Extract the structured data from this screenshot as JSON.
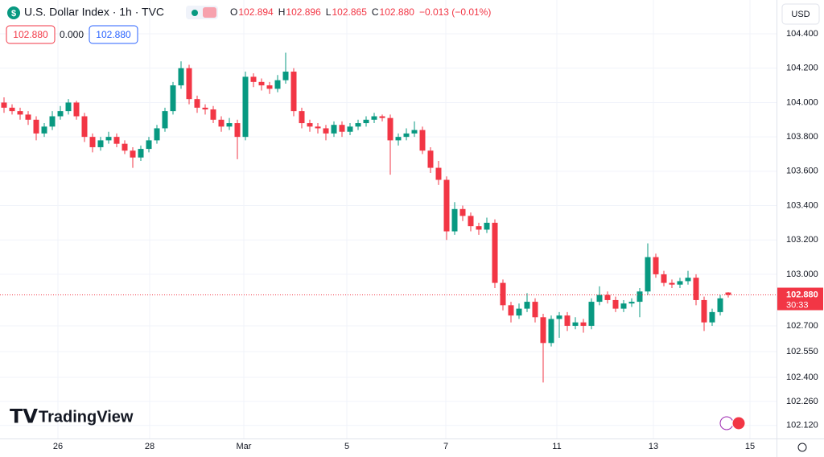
{
  "symbol": "U.S. Dollar Index · 1h · TVC",
  "ohlc": [
    {
      "key": "O",
      "value": "102.894"
    },
    {
      "key": "H",
      "value": "102.896"
    },
    {
      "key": "L",
      "value": "102.865"
    },
    {
      "key": "C",
      "value": "102.880"
    }
  ],
  "change": "−0.013 (−0.01%)",
  "price_boxes": [
    "102.880",
    "0.000",
    "102.880"
  ],
  "currency": "USD",
  "brand": "TradingView",
  "chart_data": {
    "type": "candlestick",
    "up_color": "#089981",
    "down_color": "#f23645",
    "open": [
      104.0,
      103.97,
      103.95,
      103.93,
      103.9,
      103.82,
      103.86,
      103.92,
      103.95,
      104.0,
      103.92,
      103.8,
      103.74,
      103.78,
      103.8,
      103.76,
      103.72,
      103.68,
      103.73,
      103.78,
      103.85,
      103.95,
      104.1,
      104.2,
      104.02,
      103.97,
      103.96,
      103.9,
      103.86,
      103.88,
      103.8,
      104.15,
      104.12,
      104.1,
      104.08,
      104.13,
      104.18,
      103.95,
      103.88,
      103.86,
      103.85,
      103.82,
      103.87,
      103.83,
      103.86,
      103.88,
      103.9,
      103.92,
      103.91,
      103.78,
      103.8,
      103.82,
      103.84,
      103.72,
      103.62,
      103.55,
      103.25,
      103.38,
      103.34,
      103.28,
      103.26,
      103.3,
      102.95,
      102.82,
      102.76,
      102.8,
      102.84,
      102.75,
      102.6,
      102.74,
      102.76,
      102.7,
      102.72,
      102.7,
      102.84,
      102.88,
      102.85,
      102.8,
      102.83,
      102.84,
      102.9,
      103.1,
      103.0,
      102.95,
      102.94,
      102.96,
      102.98,
      102.85,
      102.72,
      102.78,
      102.894
    ],
    "high": [
      104.03,
      103.99,
      103.97,
      103.95,
      103.92,
      103.88,
      103.95,
      103.98,
      104.02,
      104.01,
      103.94,
      103.82,
      103.8,
      103.83,
      103.82,
      103.78,
      103.74,
      103.75,
      103.8,
      103.87,
      103.97,
      104.12,
      104.24,
      104.22,
      104.04,
      103.99,
      103.98,
      103.92,
      103.91,
      103.9,
      104.18,
      104.17,
      104.14,
      104.12,
      104.16,
      104.29,
      104.2,
      103.97,
      103.9,
      103.88,
      103.87,
      103.89,
      103.89,
      103.88,
      103.9,
      103.92,
      103.94,
      103.93,
      103.93,
      103.82,
      103.85,
      103.89,
      103.86,
      103.74,
      103.66,
      103.57,
      103.42,
      103.4,
      103.36,
      103.3,
      103.33,
      103.32,
      102.97,
      102.84,
      102.83,
      102.89,
      102.86,
      102.77,
      102.76,
      102.78,
      102.78,
      102.75,
      102.74,
      102.86,
      102.93,
      102.9,
      102.87,
      102.85,
      102.86,
      102.92,
      103.18,
      103.12,
      103.02,
      102.97,
      102.98,
      103.02,
      103.0,
      102.87,
      102.8,
      102.88,
      102.896
    ],
    "low": [
      103.94,
      103.93,
      103.9,
      103.87,
      103.78,
      103.8,
      103.84,
      103.9,
      103.93,
      103.9,
      103.77,
      103.71,
      103.72,
      103.76,
      103.74,
      103.7,
      103.62,
      103.66,
      103.71,
      103.76,
      103.83,
      103.93,
      104.08,
      103.99,
      103.94,
      103.93,
      103.88,
      103.83,
      103.84,
      103.67,
      103.78,
      104.09,
      104.07,
      104.05,
      104.06,
      104.11,
      103.92,
      103.85,
      103.83,
      103.82,
      103.78,
      103.8,
      103.8,
      103.81,
      103.84,
      103.86,
      103.88,
      103.89,
      103.58,
      103.75,
      103.78,
      103.8,
      103.7,
      103.59,
      103.52,
      103.2,
      103.23,
      103.31,
      103.25,
      103.23,
      103.24,
      102.92,
      102.79,
      102.72,
      102.74,
      102.78,
      102.72,
      102.37,
      102.58,
      102.63,
      102.67,
      102.68,
      102.66,
      102.68,
      102.82,
      102.83,
      102.78,
      102.78,
      102.81,
      102.75,
      102.88,
      102.98,
      102.93,
      102.92,
      102.92,
      102.94,
      102.82,
      102.67,
      102.7,
      102.76,
      102.865
    ],
    "close": [
      103.97,
      103.95,
      103.93,
      103.9,
      103.82,
      103.86,
      103.92,
      103.95,
      104.0,
      103.92,
      103.8,
      103.74,
      103.78,
      103.8,
      103.76,
      103.72,
      103.68,
      103.73,
      103.78,
      103.85,
      103.95,
      104.1,
      104.2,
      104.02,
      103.97,
      103.96,
      103.9,
      103.86,
      103.88,
      103.8,
      104.15,
      104.12,
      104.1,
      104.08,
      104.13,
      104.18,
      103.95,
      103.88,
      103.86,
      103.85,
      103.82,
      103.87,
      103.83,
      103.86,
      103.88,
      103.9,
      103.92,
      103.91,
      103.78,
      103.8,
      103.82,
      103.84,
      103.72,
      103.62,
      103.55,
      103.25,
      103.38,
      103.34,
      103.28,
      103.26,
      103.3,
      102.95,
      102.82,
      102.76,
      102.8,
      102.84,
      102.75,
      102.6,
      102.74,
      102.76,
      102.7,
      102.72,
      102.7,
      102.84,
      102.88,
      102.85,
      102.8,
      102.83,
      102.84,
      102.9,
      103.1,
      103.0,
      102.95,
      102.94,
      102.96,
      102.98,
      102.85,
      102.72,
      102.78,
      102.86,
      102.88
    ],
    "ylim": [
      102.044,
      104.597
    ],
    "yticks": [
      {
        "value": 104.4,
        "label": "104.400"
      },
      {
        "value": 104.2,
        "label": "104.200"
      },
      {
        "value": 104.0,
        "label": "104.000"
      },
      {
        "value": 103.8,
        "label": "103.800"
      },
      {
        "value": 103.6,
        "label": "103.600"
      },
      {
        "value": 103.4,
        "label": "103.400"
      },
      {
        "value": 103.2,
        "label": "103.200"
      },
      {
        "value": 103.0,
        "label": "103.000"
      },
      {
        "value": 102.7,
        "label": "102.700"
      },
      {
        "value": 102.55,
        "label": "102.550"
      },
      {
        "value": 102.4,
        "label": "102.400"
      },
      {
        "value": 102.26,
        "label": "102.260"
      },
      {
        "value": 102.12,
        "label": "102.120"
      }
    ],
    "xlim": [
      -0.5,
      96
    ],
    "xticks": [
      {
        "value": 6.7,
        "label": "26"
      },
      {
        "value": 18.1,
        "label": "28"
      },
      {
        "value": 29.8,
        "label": "Mar"
      },
      {
        "value": 42.6,
        "label": "5"
      },
      {
        "value": 54.9,
        "label": "7"
      },
      {
        "value": 68.7,
        "label": "11"
      },
      {
        "value": 80.7,
        "label": "13"
      },
      {
        "value": 92.7,
        "label": "15"
      }
    ],
    "grid": true,
    "last_price": {
      "value": 102.88,
      "label": "102.880",
      "countdown": "30:33"
    }
  }
}
